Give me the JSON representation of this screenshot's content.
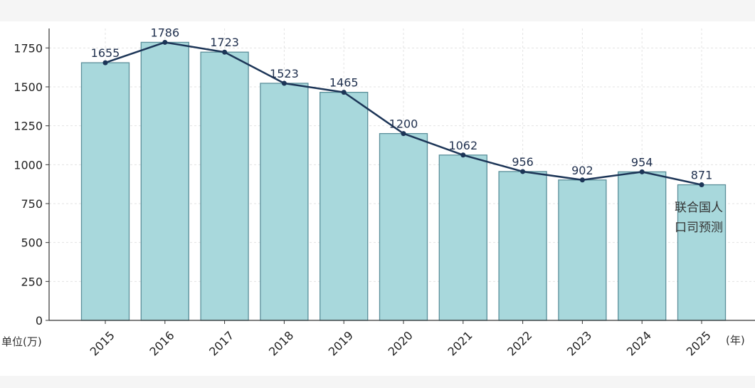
{
  "chart_data": {
    "type": "bar",
    "title": "",
    "xlabel": "(年)",
    "ylabel": "单位(万)",
    "ylim": [
      0,
      1875
    ],
    "yticks": [
      0,
      250,
      500,
      750,
      1000,
      1250,
      1500,
      1750
    ],
    "grid": true,
    "categories": [
      "2015",
      "2016",
      "2017",
      "2018",
      "2019",
      "2020",
      "2021",
      "2022",
      "2023",
      "2024",
      "2025"
    ],
    "series": [
      {
        "name": "bars",
        "type": "bar",
        "values": [
          1655,
          1786,
          1723,
          1523,
          1465,
          1200,
          1062,
          956,
          902,
          954,
          871
        ]
      },
      {
        "name": "line",
        "type": "line",
        "values": [
          1655,
          1786,
          1723,
          1523,
          1465,
          1200,
          1062,
          956,
          902,
          954,
          871
        ]
      }
    ],
    "annotation": {
      "lines": [
        "联合国人",
        "口司预测"
      ],
      "category": "2025"
    },
    "colors": {
      "bar_fill": "#a8d8dc",
      "bar_stroke": "#5b8f9a",
      "line": "#1c3557",
      "grid": "#e3e3e3",
      "axis": "#333333"
    }
  }
}
